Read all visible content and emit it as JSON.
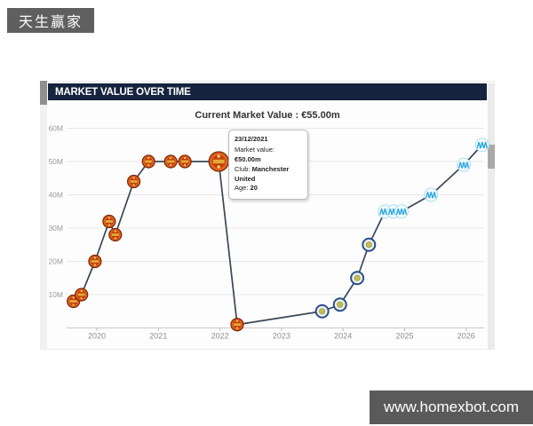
{
  "watermark_top": {
    "label": "天生赢家"
  },
  "watermark_bottom": {
    "label": "www.homexbot.com"
  },
  "panel": {
    "header": "MARKET VALUE OVER TIME",
    "subtitle": "Current Market Value : €55.00m"
  },
  "tooltip": {
    "date": "23/12/2021",
    "rows": [
      {
        "label": "Market value:",
        "value": "€50.00m"
      },
      {
        "label": "Club:",
        "value": "Manchester United"
      },
      {
        "label": "Age:",
        "value": "20"
      }
    ]
  },
  "chart_data": {
    "type": "line",
    "title": "Current Market Value : €55.00m",
    "xlabel": "",
    "ylabel": "",
    "x_tick_labels": [
      "2020",
      "2021",
      "2022",
      "2023",
      "2024",
      "2025",
      "2026"
    ],
    "y_tick_labels": [
      "10M",
      "20M",
      "30M",
      "40M",
      "50M",
      "60M"
    ],
    "xlim": [
      2019.45,
      2026.6
    ],
    "ylim": [
      0,
      62
    ],
    "grid": true,
    "line_color": "#3a4756",
    "marker_colors": {
      "red-crest": "#d9530f",
      "navy-yellow-crest": "#2b4d8f",
      "lightblue-crest": "#2fa9e0"
    },
    "points": [
      {
        "x": 2019.62,
        "value_m": 8,
        "marker": "red-crest"
      },
      {
        "x": 2019.75,
        "value_m": 10,
        "marker": "red-crest"
      },
      {
        "x": 2019.97,
        "value_m": 20,
        "marker": "red-crest"
      },
      {
        "x": 2020.2,
        "value_m": 32,
        "marker": "red-crest"
      },
      {
        "x": 2020.3,
        "value_m": 28,
        "marker": "red-crest"
      },
      {
        "x": 2020.6,
        "value_m": 44,
        "marker": "red-crest"
      },
      {
        "x": 2020.84,
        "value_m": 50,
        "marker": "red-crest"
      },
      {
        "x": 2021.2,
        "value_m": 50,
        "marker": "red-crest"
      },
      {
        "x": 2021.43,
        "value_m": 50,
        "marker": "red-crest"
      },
      {
        "x": 2021.98,
        "value_m": 50,
        "marker": "red-crest",
        "highlighted": true
      },
      {
        "x": 2022.28,
        "value_m": 1,
        "marker": "red-crest"
      },
      {
        "x": 2023.66,
        "value_m": 5,
        "marker": "navy-yellow-crest"
      },
      {
        "x": 2023.95,
        "value_m": 7,
        "marker": "navy-yellow-crest"
      },
      {
        "x": 2024.23,
        "value_m": 15,
        "marker": "navy-yellow-crest"
      },
      {
        "x": 2024.42,
        "value_m": 25,
        "marker": "navy-yellow-crest"
      },
      {
        "x": 2024.68,
        "value_m": 35,
        "marker": "lightblue-crest"
      },
      {
        "x": 2024.82,
        "value_m": 35,
        "marker": "lightblue-crest"
      },
      {
        "x": 2024.95,
        "value_m": 35,
        "marker": "lightblue-crest"
      },
      {
        "x": 2025.43,
        "value_m": 40,
        "marker": "lightblue-crest"
      },
      {
        "x": 2025.96,
        "value_m": 49,
        "marker": "lightblue-crest"
      },
      {
        "x": 2026.26,
        "value_m": 55,
        "marker": "lightblue-crest"
      }
    ]
  }
}
